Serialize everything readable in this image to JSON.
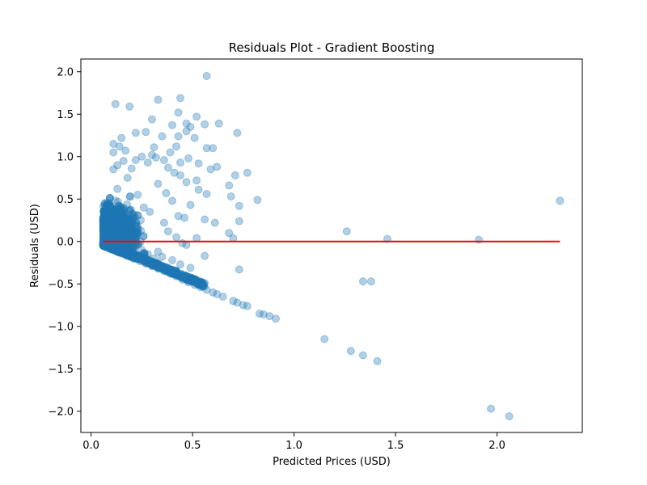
{
  "chart_data": {
    "type": "scatter",
    "title": "Residuals Plot - Gradient Boosting",
    "xlabel": "Predicted Prices (USD)",
    "ylabel": "Residuals (USD)",
    "xlim": [
      -0.05,
      2.42
    ],
    "ylim": [
      -2.25,
      2.15
    ],
    "xticks": [
      0.0,
      0.5,
      1.0,
      1.5,
      2.0
    ],
    "xtick_labels": [
      "0.0",
      "0.5",
      "1.0",
      "1.5",
      "2.0"
    ],
    "yticks": [
      -2.0,
      -1.5,
      -1.0,
      -0.5,
      0.0,
      0.5,
      1.0,
      1.5,
      2.0
    ],
    "ytick_labels": [
      "−2.0",
      "−1.5",
      "−1.0",
      "−0.5",
      "0.0",
      "0.5",
      "1.0",
      "1.5",
      "2.0"
    ],
    "grid": false,
    "legend": "none",
    "point_color": "#1f77b4",
    "point_alpha": 0.35,
    "reference_line": {
      "y": 0.0,
      "x_range": [
        0.06,
        2.31
      ],
      "color": "#ff0000"
    },
    "series": [
      {
        "points": [
          [
            0.12,
            1.62
          ],
          [
            0.19,
            1.59
          ],
          [
            0.33,
            1.67
          ],
          [
            0.44,
            1.69
          ],
          [
            0.57,
            1.95
          ],
          [
            0.43,
            1.52
          ],
          [
            0.3,
            1.44
          ],
          [
            0.52,
            1.47
          ],
          [
            0.47,
            1.39
          ],
          [
            0.4,
            1.37
          ],
          [
            0.56,
            1.38
          ],
          [
            0.63,
            1.39
          ],
          [
            0.35,
            1.24
          ],
          [
            0.43,
            1.24
          ],
          [
            0.47,
            1.3
          ],
          [
            0.49,
            1.35
          ],
          [
            0.51,
            1.22
          ],
          [
            0.27,
            1.29
          ],
          [
            0.22,
            1.28
          ],
          [
            0.15,
            1.22
          ],
          [
            0.72,
            1.28
          ],
          [
            0.6,
            1.1
          ],
          [
            0.57,
            1.1
          ],
          [
            0.42,
            1.12
          ],
          [
            0.31,
            1.11
          ],
          [
            0.39,
            1.05
          ],
          [
            0.11,
            1.15
          ],
          [
            0.14,
            1.12
          ],
          [
            0.17,
            1.07
          ],
          [
            0.11,
            1.05
          ],
          [
            0.48,
            0.98
          ],
          [
            0.44,
            0.93
          ],
          [
            0.53,
            0.92
          ],
          [
            0.62,
            0.88
          ],
          [
            0.59,
            0.85
          ],
          [
            0.77,
            0.81
          ],
          [
            0.71,
            0.78
          ],
          [
            0.47,
            0.7
          ],
          [
            0.52,
            0.72
          ],
          [
            0.68,
            0.66
          ],
          [
            0.53,
            0.61
          ],
          [
            0.57,
            0.56
          ],
          [
            0.69,
            0.53
          ],
          [
            0.82,
            0.49
          ],
          [
            0.73,
            0.42
          ],
          [
            0.49,
            0.43
          ],
          [
            0.56,
            0.26
          ],
          [
            0.61,
            0.22
          ],
          [
            0.73,
            0.24
          ],
          [
            0.68,
            0.1
          ],
          [
            0.7,
            0.04
          ],
          [
            0.52,
            0.04
          ],
          [
            0.56,
            -0.17
          ],
          [
            0.73,
            -0.33
          ],
          [
            1.26,
            0.12
          ],
          [
            1.46,
            0.03
          ],
          [
            1.91,
            0.02
          ],
          [
            2.31,
            0.48
          ],
          [
            1.34,
            -0.47
          ],
          [
            1.38,
            -0.47
          ],
          [
            1.15,
            -1.15
          ],
          [
            1.28,
            -1.29
          ],
          [
            1.34,
            -1.34
          ],
          [
            1.41,
            -1.41
          ],
          [
            1.97,
            -1.97
          ],
          [
            2.06,
            -2.06
          ],
          [
            0.83,
            -0.85
          ],
          [
            0.85,
            -0.86
          ],
          [
            0.88,
            -0.88
          ],
          [
            0.91,
            -0.91
          ],
          [
            0.75,
            -0.75
          ],
          [
            0.77,
            -0.76
          ],
          [
            0.7,
            -0.7
          ],
          [
            0.72,
            -0.72
          ],
          [
            0.65,
            -0.65
          ],
          [
            0.62,
            -0.62
          ],
          [
            0.6,
            -0.6
          ],
          [
            0.57,
            -0.57
          ],
          [
            0.54,
            -0.54
          ],
          [
            0.51,
            -0.51
          ],
          [
            0.48,
            -0.48
          ],
          [
            0.45,
            -0.45
          ],
          [
            0.42,
            -0.41
          ],
          [
            0.39,
            -0.38
          ],
          [
            0.36,
            -0.35
          ],
          [
            0.33,
            -0.32
          ],
          [
            0.3,
            -0.29
          ],
          [
            0.27,
            -0.26
          ],
          [
            0.24,
            -0.23
          ],
          [
            0.21,
            -0.2
          ],
          [
            0.18,
            -0.17
          ],
          [
            0.15,
            -0.14
          ],
          [
            0.12,
            -0.11
          ],
          [
            0.09,
            -0.08
          ],
          [
            0.07,
            -0.05
          ],
          [
            0.06,
            -0.04
          ],
          [
            0.08,
            -0.06
          ],
          [
            0.1,
            -0.09
          ],
          [
            0.13,
            -0.12
          ],
          [
            0.16,
            -0.15
          ],
          [
            0.08,
            0.3
          ],
          [
            0.1,
            0.3
          ],
          [
            0.12,
            0.48
          ],
          [
            0.13,
            0.62
          ],
          [
            0.11,
            0.85
          ],
          [
            0.13,
            0.9
          ],
          [
            0.16,
            0.95
          ],
          [
            0.18,
            0.75
          ],
          [
            0.2,
            0.86
          ],
          [
            0.22,
            0.96
          ],
          [
            0.25,
            1.0
          ],
          [
            0.28,
            0.93
          ],
          [
            0.3,
            1.02
          ],
          [
            0.32,
            0.99
          ],
          [
            0.36,
            0.96
          ],
          [
            0.38,
            0.87
          ],
          [
            0.41,
            0.81
          ],
          [
            0.44,
            0.78
          ],
          [
            0.33,
            0.68
          ],
          [
            0.37,
            0.57
          ],
          [
            0.4,
            0.48
          ],
          [
            0.43,
            0.3
          ],
          [
            0.46,
            0.28
          ],
          [
            0.36,
            0.22
          ],
          [
            0.38,
            0.12
          ],
          [
            0.42,
            0.05
          ],
          [
            0.45,
            -0.02
          ],
          [
            0.47,
            -0.04
          ],
          [
            0.33,
            -0.12
          ],
          [
            0.35,
            -0.18
          ],
          [
            0.4,
            -0.22
          ],
          [
            0.44,
            -0.27
          ],
          [
            0.49,
            -0.31
          ],
          [
            0.42,
            -0.34
          ],
          [
            0.23,
            0.55
          ],
          [
            0.26,
            0.4
          ],
          [
            0.29,
            0.35
          ],
          [
            0.21,
            0.2
          ],
          [
            0.19,
            0.1
          ],
          [
            0.17,
            0.02
          ],
          [
            0.14,
            -0.08
          ],
          [
            0.22,
            -0.05
          ],
          [
            0.25,
            -0.1
          ],
          [
            0.28,
            -0.15
          ],
          [
            0.31,
            -0.2
          ]
        ]
      }
    ]
  }
}
